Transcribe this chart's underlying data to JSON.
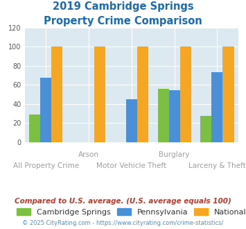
{
  "title_line1": "2019 Cambridge Springs",
  "title_line2": "Property Crime Comparison",
  "cambridge_springs": [
    29,
    0,
    0,
    56,
    27
  ],
  "pennsylvania": [
    67,
    0,
    45,
    54,
    73
  ],
  "national": [
    100,
    100,
    100,
    100,
    100
  ],
  "colors": {
    "cambridge_springs": "#7bc043",
    "pennsylvania": "#4a90d9",
    "national": "#f5a623"
  },
  "ylim": [
    0,
    120
  ],
  "yticks": [
    0,
    20,
    40,
    60,
    80,
    100,
    120
  ],
  "background_color": "#dce9f0",
  "grid_color": "#ffffff",
  "title_color": "#1a6bb5",
  "xlabel_color": "#9e9e9e",
  "legend_labels": [
    "Cambridge Springs",
    "Pennsylvania",
    "National"
  ],
  "legend_text_color": "#333333",
  "footnote1": "Compared to U.S. average. (U.S. average equals 100)",
  "footnote2": "© 2025 CityRating.com - https://www.cityrating.com/crime-statistics/",
  "footnote1_color": "#c0392b",
  "footnote2_color": "#4a90d9",
  "x_top_labels": [
    "",
    "Arson",
    "",
    "Burglary",
    ""
  ],
  "x_bottom_labels": [
    "All Property Crime",
    "",
    "Motor Vehicle Theft",
    "",
    "Larceny & Theft"
  ]
}
